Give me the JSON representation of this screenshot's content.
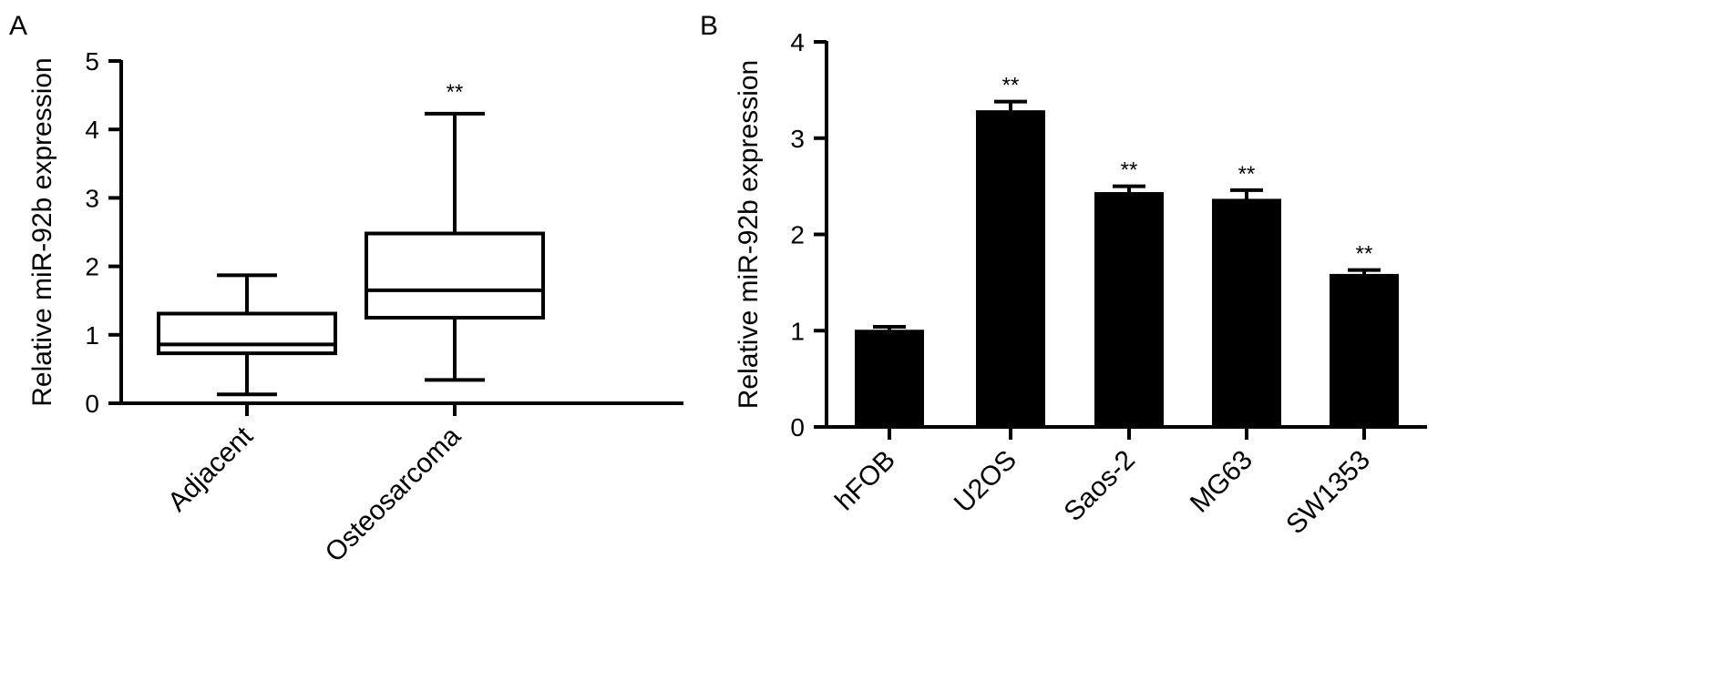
{
  "chart_data": [
    {
      "panel": "A",
      "type": "box",
      "ylabel": "Relative miR-92b expression",
      "ylim": [
        0,
        5
      ],
      "yticks": [
        0,
        1,
        2,
        3,
        4,
        5
      ],
      "categories": [
        "Adjacent",
        "Osteosarcoma"
      ],
      "boxes": [
        {
          "name": "Adjacent",
          "min": 0.13,
          "q1": 0.73,
          "median": 0.86,
          "q3": 1.31,
          "max": 1.87,
          "annotation": ""
        },
        {
          "name": "Osteosarcoma",
          "min": 0.34,
          "q1": 1.25,
          "median": 1.65,
          "q3": 2.48,
          "max": 4.23,
          "annotation": "**"
        }
      ]
    },
    {
      "panel": "B",
      "type": "bar",
      "ylabel": "Relative miR-92b expression",
      "ylim": [
        0,
        4
      ],
      "yticks": [
        0,
        1,
        2,
        3,
        4
      ],
      "categories": [
        "hFOB",
        "U2OS",
        "Saos-2",
        "MG63",
        "SW1353"
      ],
      "values": [
        1.0,
        3.28,
        2.43,
        2.36,
        1.58
      ],
      "errors": [
        0.04,
        0.1,
        0.07,
        0.1,
        0.05
      ],
      "annotations": [
        "",
        "**",
        "**",
        "**",
        "**"
      ],
      "bar_color": "#000000"
    }
  ]
}
